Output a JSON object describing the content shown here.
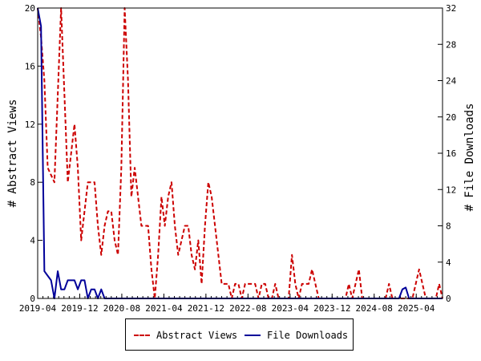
{
  "chart_data": {
    "type": "line",
    "xlabel": "",
    "x_ticks": [
      "2019-04",
      "2019-12",
      "2020-08",
      "2021-04",
      "2021-12",
      "2022-08",
      "2023-04",
      "2023-12",
      "2024-08",
      "2025-04"
    ],
    "y_left": {
      "label": "# Abstract Views",
      "lim": [
        0,
        20
      ],
      "ticks": [
        0,
        4,
        8,
        12,
        16,
        20
      ]
    },
    "y_right": {
      "label": "# File Downloads",
      "lim": [
        0,
        32
      ],
      "ticks": [
        0,
        4,
        8,
        12,
        16,
        20,
        24,
        28,
        32
      ]
    },
    "legend_position": "bottom-center",
    "series": [
      {
        "name": "Abstract Views",
        "axis": "left",
        "color": "#cc0000",
        "style": "dashed",
        "x_range": [
          "2019-04",
          "2025-09"
        ],
        "values": [
          20,
          18,
          15,
          9,
          8.5,
          8,
          14,
          20,
          14,
          8,
          10,
          12,
          9,
          4,
          6,
          8,
          8,
          8,
          5,
          3,
          5,
          6,
          6,
          4,
          3,
          9,
          20,
          15,
          7,
          9,
          7,
          5,
          5,
          5,
          2,
          0,
          3,
          7,
          5,
          7,
          8,
          5,
          3,
          4,
          5,
          5,
          3,
          2,
          4,
          1,
          5,
          8,
          7,
          5,
          3,
          1,
          1,
          1,
          0,
          1,
          1,
          0,
          1,
          1,
          1,
          1,
          0,
          1,
          1,
          0,
          0,
          1,
          0,
          0,
          0,
          0,
          3,
          1,
          0,
          1,
          1,
          1,
          2,
          1,
          0,
          0,
          0,
          0,
          0,
          0,
          0,
          0,
          0,
          1,
          0,
          1,
          2,
          0,
          0,
          0,
          0,
          0,
          0,
          0,
          0,
          1,
          0,
          0,
          0,
          0,
          0,
          0,
          0,
          1,
          2,
          1,
          0,
          0,
          0,
          0,
          1,
          0
        ]
      },
      {
        "name": "File Downloads",
        "axis": "right",
        "color": "#000099",
        "style": "solid",
        "x_range": [
          "2019-04",
          "2025-09"
        ],
        "values": [
          32,
          30,
          3,
          2.5,
          2,
          0,
          3,
          1,
          1,
          2,
          2,
          2,
          1,
          2,
          2,
          0,
          1,
          1,
          0,
          1,
          0,
          0,
          0,
          0,
          0,
          0,
          0,
          0,
          0,
          0,
          0,
          0,
          0,
          0,
          0,
          0,
          0,
          0,
          0,
          0,
          0,
          0,
          0,
          0,
          0,
          0,
          0,
          0,
          0,
          0,
          0,
          0,
          0,
          0,
          0,
          0,
          0,
          0,
          0,
          0,
          0,
          0,
          0,
          0,
          0,
          0,
          0,
          0,
          0,
          0,
          0,
          0,
          0,
          0,
          0,
          0,
          0,
          0,
          0,
          0,
          0,
          0,
          0,
          0,
          0,
          0,
          0,
          0,
          0,
          0,
          0,
          0,
          0,
          0,
          0,
          0,
          0,
          0,
          0,
          0,
          0,
          0,
          0,
          0,
          0,
          0,
          0,
          0,
          0,
          1,
          1.2,
          0,
          0,
          0,
          0,
          0,
          0,
          0,
          0,
          0,
          0,
          0
        ]
      }
    ]
  }
}
